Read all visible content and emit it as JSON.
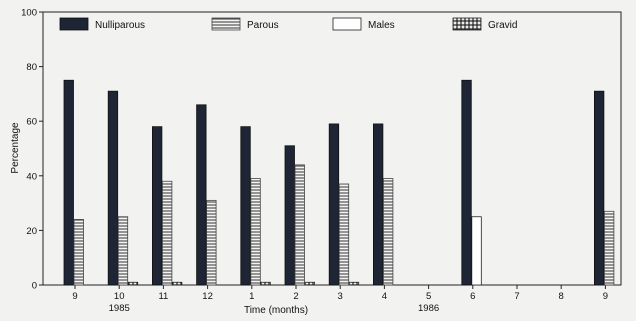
{
  "chart_data": {
    "type": "bar",
    "ylabel": "Percentage",
    "xlabel": "Time (months)",
    "ylim": [
      0,
      100
    ],
    "yticks": [
      "0",
      "20",
      "40",
      "60",
      "80",
      "100"
    ],
    "categories": [
      "9",
      "10",
      "11",
      "12",
      "1",
      "2",
      "3",
      "4",
      "5",
      "6",
      "7",
      "8",
      "9"
    ],
    "year_labels": [
      {
        "text": "1985",
        "category_index": 1
      },
      {
        "text": "1986",
        "category_index": 8
      }
    ],
    "legend_position": "top",
    "series": [
      {
        "name": "Nulliparous",
        "pattern": "solid-dark",
        "values": [
          75,
          71,
          58,
          66,
          58,
          51,
          59,
          59,
          0,
          75,
          0,
          0,
          71
        ]
      },
      {
        "name": "Parous",
        "pattern": "horizontal-hatch",
        "values": [
          24,
          25,
          38,
          31,
          39,
          44,
          37,
          39,
          0,
          0,
          0,
          0,
          27
        ]
      },
      {
        "name": "Males",
        "pattern": "open",
        "values": [
          0,
          0,
          0,
          0,
          0,
          0,
          0,
          0,
          0,
          25,
          0,
          0,
          0
        ]
      },
      {
        "name": "Gravid",
        "pattern": "crosshatch",
        "values": [
          0,
          1,
          1,
          0,
          1,
          1,
          1,
          0,
          0,
          0,
          0,
          0,
          0
        ]
      }
    ]
  }
}
